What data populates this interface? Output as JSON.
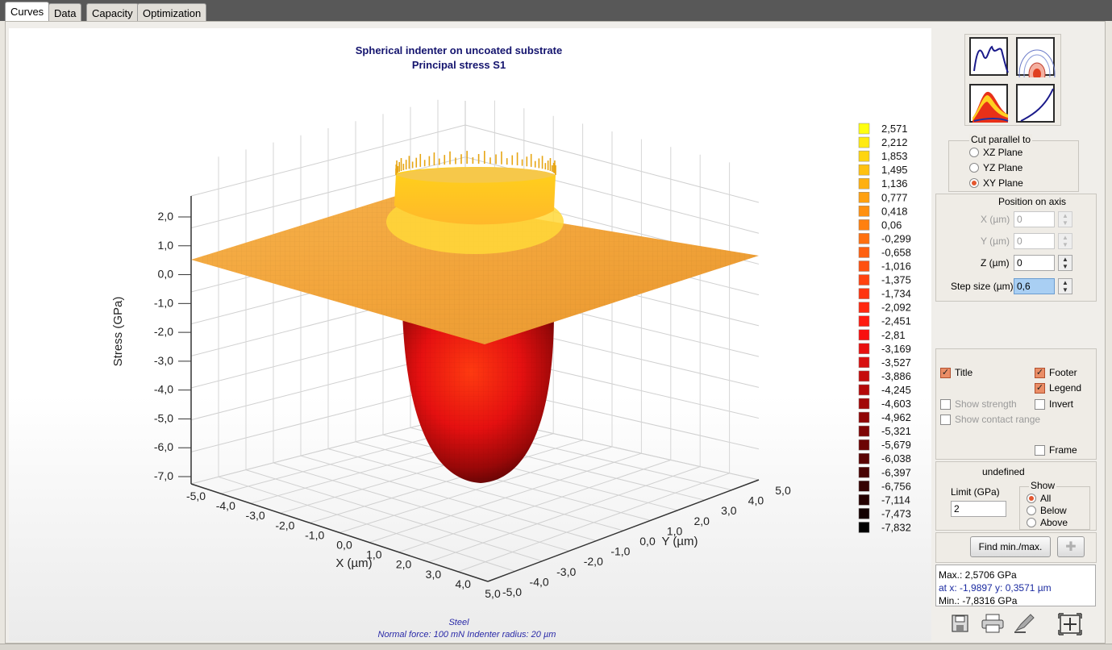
{
  "tabs": [
    {
      "label": "Curves",
      "active": true
    },
    {
      "label": "Data",
      "active": false
    },
    {
      "label": "Capacity",
      "active": false
    },
    {
      "label": "Optimization",
      "active": false
    }
  ],
  "chart_data": {
    "type": "surface",
    "title": "Spherical indenter on uncoated substrate",
    "subtitle": "Principal stress S1",
    "zlabel": "Stress (GPa)",
    "xlabel": "X (µm)",
    "ylabel": "Y (µm)",
    "z_ticks": [
      "2,0",
      "1,0",
      "0,0",
      "-1,0",
      "-2,0",
      "-3,0",
      "-4,0",
      "-5,0",
      "-6,0",
      "-7,0"
    ],
    "x_ticks": [
      "-5,0",
      "-4,0",
      "-3,0",
      "-2,0",
      "-1,0",
      "0,0",
      "1,0",
      "2,0",
      "3,0",
      "4,0",
      "5,0"
    ],
    "y_ticks": [
      "-5,0",
      "-4,0",
      "-3,0",
      "-2,0",
      "-1,0",
      "0,0",
      "1,0",
      "2,0",
      "3,0",
      "4,0",
      "5,0"
    ],
    "x_range": [
      -5,
      5
    ],
    "y_range": [
      -5,
      5
    ],
    "z_range": [
      -7.8316,
      2.5706
    ],
    "legend_values": [
      "2,571",
      "2,212",
      "1,853",
      "1,495",
      "1,136",
      "0,777",
      "0,418",
      "0,06",
      "-0,299",
      "-0,658",
      "-1,016",
      "-1,375",
      "-1,734",
      "-2,092",
      "-2,451",
      "-2,81",
      "-3,169",
      "-3,527",
      "-3,886",
      "-4,245",
      "-4,603",
      "-4,962",
      "-5,321",
      "-5,679",
      "-6,038",
      "-6,397",
      "-6,756",
      "-7,114",
      "-7,473",
      "-7,832"
    ],
    "legend_colors": [
      "#ffff10",
      "#ffea10",
      "#ffd510",
      "#ffc110",
      "#ffb010",
      "#ffa010",
      "#ff9010",
      "#ff8010",
      "#ff7010",
      "#ff6010",
      "#ff5010",
      "#ff4210",
      "#ff3510",
      "#ff2810",
      "#ff1b10",
      "#f81010",
      "#e81010",
      "#d81010",
      "#c50c0c",
      "#b40a0a",
      "#a20808",
      "#900606",
      "#7e0505",
      "#6c0404",
      "#5a0303",
      "#480202",
      "#360202",
      "#250101",
      "#140000",
      "#000000"
    ],
    "legend_position": "right",
    "footer_material": "Steel",
    "footer_params": "Normal force: 100 mN   Indenter radius: 20 µm"
  },
  "sidebar": {
    "view_icons": [
      "line-curve-icon",
      "contour-map-icon",
      "surface-3d-icon",
      "rising-curve-icon"
    ],
    "cut_group_label": "Cut parallel to",
    "cut_options": [
      {
        "label": "XZ Plane",
        "selected": false
      },
      {
        "label": "YZ Plane",
        "selected": false
      },
      {
        "label": "XY Plane",
        "selected": true
      }
    ],
    "position_group_label": "Position on axis",
    "x_label": "X (µm)",
    "x_value": "0",
    "y_label": "Y (µm)",
    "y_value": "0",
    "z_label": "Z (µm)",
    "z_value": "0",
    "step_label": "Step size (µm)",
    "step_value": "0,6",
    "checks": {
      "title": {
        "label": "Title",
        "checked": true
      },
      "footer": {
        "label": "Footer",
        "checked": true
      },
      "legend": {
        "label": "Legend",
        "checked": true
      },
      "show_strength": {
        "label": "Show strength",
        "checked": false
      },
      "invert": {
        "label": "Invert",
        "checked": false
      },
      "show_contact_range": {
        "label": "Show contact range",
        "checked": false
      },
      "frame": {
        "label": "Frame",
        "checked": false
      }
    },
    "undefined_label": "undefined",
    "limit_label": "Limit (GPa)",
    "limit_value": "2",
    "show_group_label": "Show",
    "show_options": [
      {
        "label": "All",
        "selected": true
      },
      {
        "label": "Below",
        "selected": false
      },
      {
        "label": "Above",
        "selected": false
      }
    ],
    "find_button": "Find min./max.",
    "info_max": "Max.: 2,5706 GPa",
    "info_at": "at x: -1,9897  y: 0,3571 µm",
    "info_min": "Min.: -7,8316 GPa",
    "bottom_icons": [
      "save-icon",
      "print-icon",
      "edit-pen-icon",
      "zoom-fit-icon"
    ]
  }
}
